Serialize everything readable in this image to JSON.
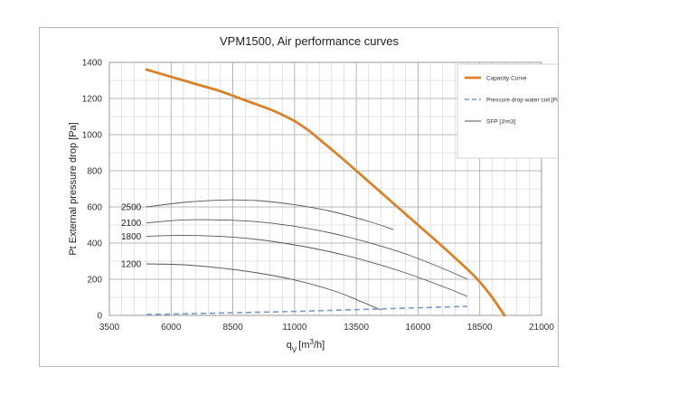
{
  "chart_data": {
    "type": "line",
    "title": "VPM1500, Air performance curves",
    "xlabel": {
      "main": "q",
      "sub": "V",
      "unit": "[m",
      "sup": "3",
      "unit_end": "/h]"
    },
    "ylabel": "Pt External pressure drop [Pa]",
    "xlim": [
      3500,
      21000
    ],
    "ylim": [
      0,
      1400
    ],
    "x_ticks": [
      3500,
      6000,
      8500,
      11000,
      13500,
      16000,
      18500,
      21000
    ],
    "y_ticks": [
      0,
      200,
      400,
      600,
      800,
      1000,
      1200,
      1400
    ],
    "grid": true,
    "legend_position": "top-right",
    "legend": [
      "Capacity Curve",
      "Pressure drop water coil [Pa]",
      "SFP [J/m3]"
    ],
    "colors": {
      "capacity": "#d9822b",
      "water_coil": "#7e97c9",
      "sfp": "#555555",
      "grid": "#c8c8c8"
    },
    "series": [
      {
        "name": "Capacity Curve",
        "x": [
          5000,
          6000,
          7000,
          8000,
          9000,
          10000,
          10500,
          11000,
          11500,
          12000,
          13000,
          14000,
          15000,
          16000,
          17000,
          18000,
          18500,
          19000,
          19500
        ],
        "y": [
          1360,
          1320,
          1280,
          1240,
          1190,
          1140,
          1110,
          1075,
          1030,
          975,
          860,
          740,
          620,
          500,
          380,
          255,
          185,
          100,
          0
        ]
      },
      {
        "name": "Pressure drop water coil [Pa]",
        "x": [
          5000,
          7000,
          9000,
          11000,
          13000,
          15000,
          17000,
          18000
        ],
        "y": [
          5,
          10,
          16,
          22,
          30,
          38,
          46,
          50
        ]
      }
    ],
    "sfp_curves": [
      {
        "label": "2500",
        "x": [
          5000,
          6500,
          8000,
          9500,
          11000,
          12500,
          14000,
          15000
        ],
        "y": [
          600,
          625,
          638,
          635,
          612,
          575,
          520,
          475
        ]
      },
      {
        "label": "2100",
        "x": [
          5000,
          6500,
          8000,
          9500,
          11000,
          12500,
          14000,
          15500,
          17000,
          18000
        ],
        "y": [
          512,
          528,
          528,
          518,
          493,
          455,
          403,
          340,
          260,
          200
        ]
      },
      {
        "label": "1800",
        "x": [
          5000,
          6500,
          8000,
          9500,
          11000,
          12500,
          14000,
          15500,
          17000,
          18000
        ],
        "y": [
          438,
          443,
          437,
          420,
          390,
          350,
          298,
          235,
          160,
          105
        ]
      },
      {
        "label": "1200",
        "x": [
          5000,
          6500,
          8000,
          9500,
          11000,
          12500,
          13500,
          14500
        ],
        "y": [
          285,
          280,
          262,
          235,
          196,
          140,
          88,
          30
        ]
      }
    ]
  }
}
